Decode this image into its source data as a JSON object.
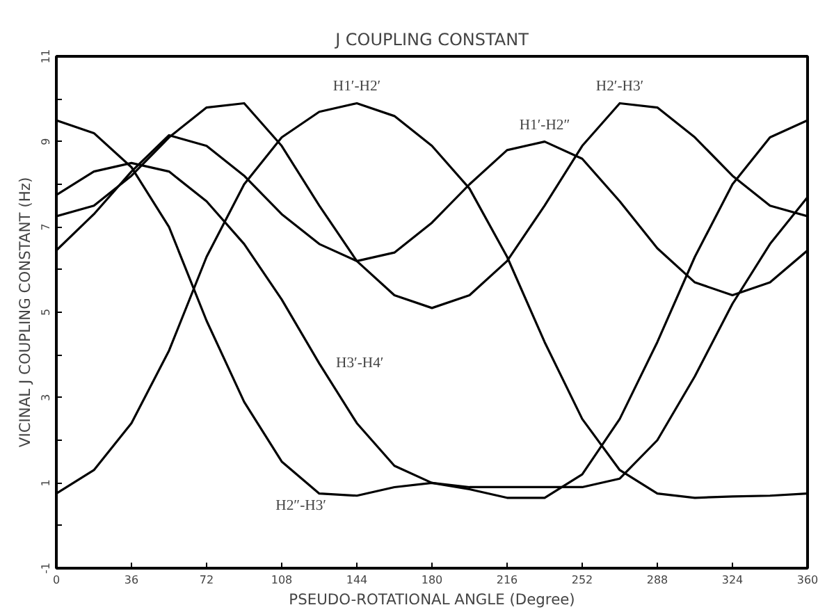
{
  "chart_data": {
    "type": "line",
    "title": "J COUPLING CONSTANT",
    "xlabel": "PSEUDO-ROTATIONAL ANGLE (Degree)",
    "ylabel": "VICINAL J COUPLING CONSTANT (Hz)",
    "x": [
      0,
      18,
      36,
      54,
      72,
      90,
      108,
      126,
      144,
      162,
      180,
      198,
      216,
      234,
      252,
      270,
      288,
      306,
      324,
      342,
      360
    ],
    "series": [
      {
        "color": "#000000",
        "values": [
          0.75,
          1.3,
          2.4,
          4.1,
          6.3,
          8.0,
          9.1,
          9.7,
          9.9,
          9.6,
          8.9,
          7.9,
          6.3,
          4.3,
          2.5,
          1.3,
          0.75,
          0.65,
          0.68,
          0.7,
          0.75
        ]
      },
      {
        "color": "#000000",
        "values": [
          9.5,
          9.2,
          8.4,
          7.0,
          4.8,
          2.9,
          1.5,
          0.75,
          0.7,
          0.9,
          1.0,
          0.85,
          0.65,
          0.65,
          1.2,
          2.5,
          4.3,
          6.3,
          8.0,
          9.1,
          9.5
        ]
      },
      {
        "color": "#000000",
        "values": [
          7.25,
          7.5,
          8.2,
          9.1,
          9.8,
          9.9,
          8.9,
          7.5,
          6.2,
          5.4,
          5.1,
          5.4,
          6.2,
          7.5,
          8.9,
          9.9,
          9.8,
          9.1,
          8.2,
          7.5,
          7.25
        ]
      },
      {
        "color": "#000000",
        "values": [
          6.45,
          7.3,
          8.3,
          9.15,
          8.9,
          8.2,
          7.3,
          6.6,
          6.2,
          6.4,
          7.1,
          8.0,
          8.8,
          9.0,
          8.6,
          7.6,
          6.5,
          5.7,
          5.4,
          5.7,
          6.45
        ]
      },
      {
        "color": "#000000",
        "values": [
          7.75,
          8.3,
          8.5,
          8.3,
          7.6,
          6.6,
          5.3,
          3.8,
          2.4,
          1.4,
          1.0,
          0.9,
          0.9,
          0.9,
          0.9,
          1.1,
          2.0,
          3.5,
          5.2,
          6.6,
          7.7
        ]
      }
    ],
    "annotations": [
      {
        "text": "H1′-H2′",
        "x": 144,
        "y": 9.9
      },
      {
        "text": "H1′-H2″",
        "x": 234,
        "y": 9.0
      },
      {
        "text": "H2′-H3′",
        "x": 270,
        "y": 9.9
      },
      {
        "text": "H3′-H4′",
        "x": 126,
        "y": 3.8
      },
      {
        "text": "H2″-H3′",
        "x": 144,
        "y": 0.7
      }
    ],
    "xlim": [
      0,
      360
    ],
    "ylim": [
      -1,
      11
    ],
    "xticks": [
      0,
      36,
      72,
      108,
      144,
      180,
      216,
      252,
      288,
      324,
      360
    ],
    "yticks": [
      -1,
      {
        "value": 0,
        "label": null
      },
      1,
      {
        "value": 2,
        "label": null
      },
      3,
      {
        "value": 4,
        "label": null
      },
      5,
      {
        "value": 6,
        "label": null
      },
      7,
      {
        "value": 8,
        "label": null
      },
      9,
      {
        "value": 10,
        "label": null
      },
      11
    ],
    "grid": false,
    "marker": "none",
    "line_style": "solid"
  }
}
